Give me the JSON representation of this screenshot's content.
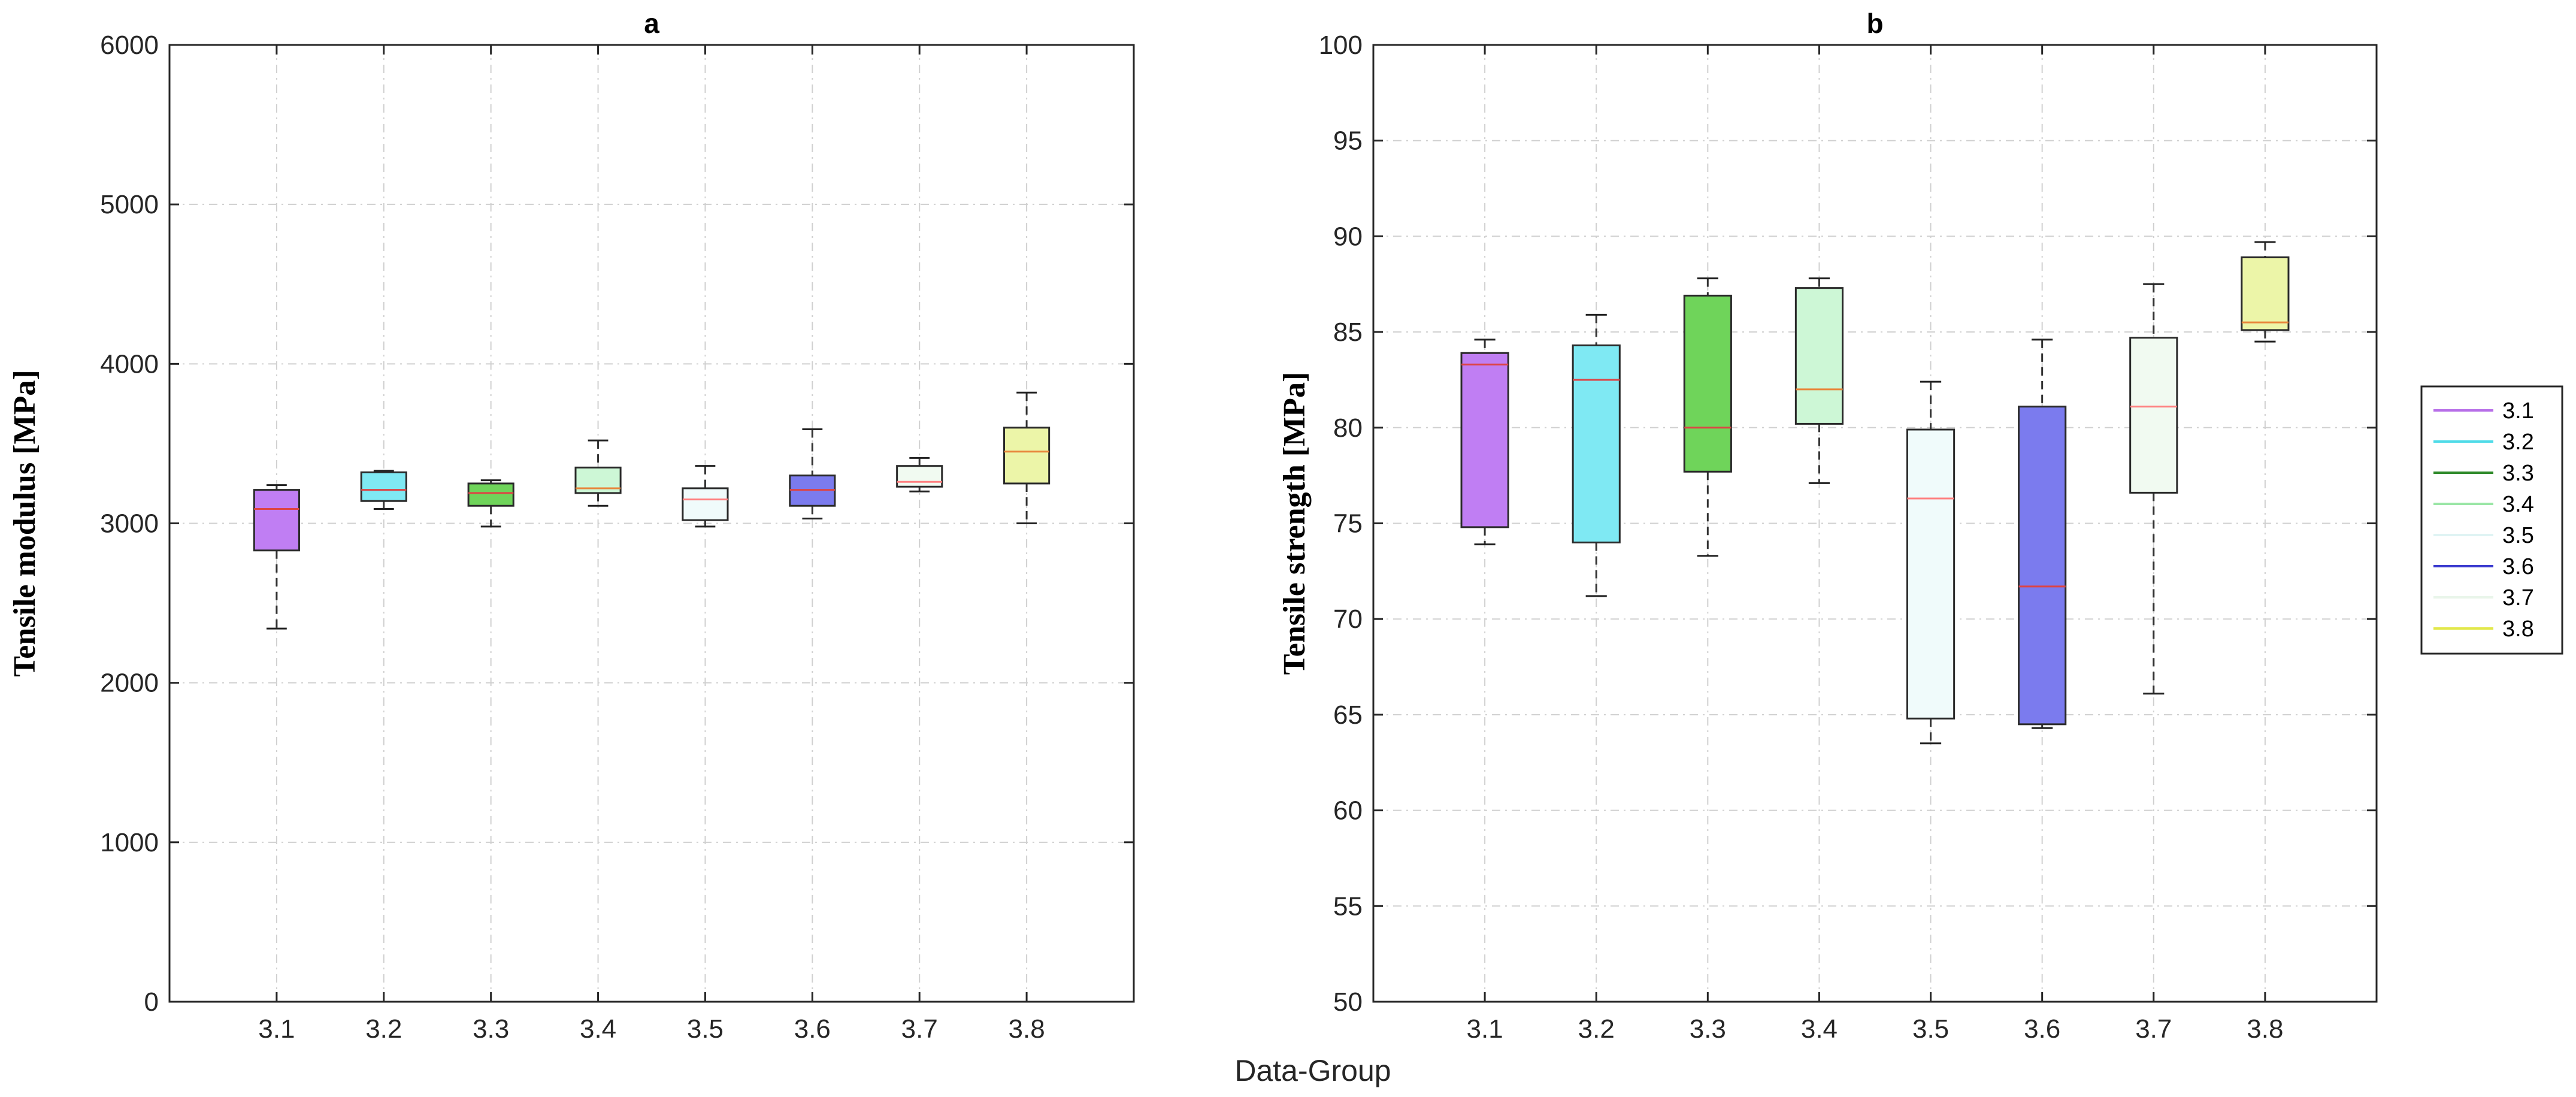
{
  "shared": {
    "xlabel": "Data-Group"
  },
  "legend": {
    "entries": [
      {
        "label": "3.1",
        "color": "#b76ee8"
      },
      {
        "label": "3.2",
        "color": "#4fdbe8"
      },
      {
        "label": "3.3",
        "color": "#2f8a2a"
      },
      {
        "label": "3.4",
        "color": "#9be6a6"
      },
      {
        "label": "3.5",
        "color": "#dff3f3"
      },
      {
        "label": "3.6",
        "color": "#3b3bcf"
      },
      {
        "label": "3.7",
        "color": "#e9f5ea"
      },
      {
        "label": "3.8",
        "color": "#e2e84a"
      }
    ]
  },
  "chart_data": [
    {
      "type": "box",
      "title": "a",
      "xlabel": "Data-Group",
      "ylabel": "Tensile modulus [MPa]",
      "ylim": [
        0,
        6000
      ],
      "yticks": [
        0,
        1000,
        2000,
        3000,
        4000,
        5000,
        6000
      ],
      "grid": true,
      "categories": [
        "3.1",
        "3.2",
        "3.3",
        "3.4",
        "3.5",
        "3.6",
        "3.7",
        "3.8"
      ],
      "boxes": [
        {
          "label": "3.1",
          "min": 2340,
          "q1": 2830,
          "median": 3090,
          "q3": 3210,
          "max": 3240,
          "fill": "#c07ef3",
          "edge": "#2a2a2a",
          "medianColor": "#d44"
        },
        {
          "label": "3.2",
          "min": 3090,
          "q1": 3140,
          "median": 3210,
          "q3": 3320,
          "max": 3330,
          "fill": "#7fe9f3",
          "edge": "#2a2a2a",
          "medianColor": "#d44"
        },
        {
          "label": "3.3",
          "min": 2980,
          "q1": 3110,
          "median": 3190,
          "q3": 3250,
          "max": 3270,
          "fill": "#6fd45a",
          "edge": "#2a2a2a",
          "medianColor": "#d44"
        },
        {
          "label": "3.4",
          "min": 3110,
          "q1": 3190,
          "median": 3220,
          "q3": 3350,
          "max": 3520,
          "fill": "#cdf7d6",
          "edge": "#2a2a2a",
          "medianColor": "#e8853a"
        },
        {
          "label": "3.5",
          "min": 2980,
          "q1": 3020,
          "median": 3150,
          "q3": 3220,
          "max": 3360,
          "fill": "#f0fbfb",
          "edge": "#2a2a2a",
          "medianColor": "#ff8080"
        },
        {
          "label": "3.6",
          "min": 3030,
          "q1": 3110,
          "median": 3210,
          "q3": 3300,
          "max": 3590,
          "fill": "#7b7bee",
          "edge": "#2a2a2a",
          "medianColor": "#d44"
        },
        {
          "label": "3.7",
          "min": 3200,
          "q1": 3230,
          "median": 3260,
          "q3": 3360,
          "max": 3410,
          "fill": "#f1faf1",
          "edge": "#2a2a2a",
          "medianColor": "#ff8080"
        },
        {
          "label": "3.8",
          "min": 3000,
          "q1": 3250,
          "median": 3450,
          "q3": 3600,
          "max": 3820,
          "fill": "#ecf5a8",
          "edge": "#2a2a2a",
          "medianColor": "#e8853a"
        }
      ]
    },
    {
      "type": "box",
      "title": "b",
      "xlabel": "Data-Group",
      "ylabel": "Tensile strength [MPa]",
      "ylim": [
        50,
        100
      ],
      "yticks": [
        50,
        55,
        60,
        65,
        70,
        75,
        80,
        85,
        90,
        95,
        100
      ],
      "grid": true,
      "categories": [
        "3.1",
        "3.2",
        "3.3",
        "3.4",
        "3.5",
        "3.6",
        "3.7",
        "3.8"
      ],
      "boxes": [
        {
          "label": "3.1",
          "min": 73.9,
          "q1": 74.8,
          "median": 83.3,
          "q3": 83.9,
          "max": 84.6,
          "fill": "#c07ef3",
          "edge": "#2a2a2a",
          "medianColor": "#d44"
        },
        {
          "label": "3.2",
          "min": 71.2,
          "q1": 74.0,
          "median": 82.5,
          "q3": 84.3,
          "max": 85.9,
          "fill": "#7fe9f3",
          "edge": "#2a2a2a",
          "medianColor": "#d44"
        },
        {
          "label": "3.3",
          "min": 73.3,
          "q1": 77.7,
          "median": 80.0,
          "q3": 86.9,
          "max": 87.8,
          "fill": "#6fd45a",
          "edge": "#2a2a2a",
          "medianColor": "#d44"
        },
        {
          "label": "3.4",
          "min": 77.1,
          "q1": 80.2,
          "median": 82.0,
          "q3": 87.3,
          "max": 87.8,
          "fill": "#cdf7d6",
          "edge": "#2a2a2a",
          "medianColor": "#e8853a"
        },
        {
          "label": "3.5",
          "min": 63.5,
          "q1": 64.8,
          "median": 76.3,
          "q3": 79.9,
          "max": 82.4,
          "fill": "#f0fbfb",
          "edge": "#2a2a2a",
          "medianColor": "#ff8080"
        },
        {
          "label": "3.6",
          "min": 64.3,
          "q1": 64.5,
          "median": 71.7,
          "q3": 81.1,
          "max": 84.6,
          "fill": "#7b7bee",
          "edge": "#2a2a2a",
          "medianColor": "#d44"
        },
        {
          "label": "3.7",
          "min": 66.1,
          "q1": 76.6,
          "median": 81.1,
          "q3": 84.7,
          "max": 87.5,
          "fill": "#f1faf1",
          "edge": "#2a2a2a",
          "medianColor": "#ff8080"
        },
        {
          "label": "3.8",
          "min": 84.5,
          "q1": 85.1,
          "median": 85.5,
          "q3": 88.9,
          "max": 89.7,
          "fill": "#ecf5a8",
          "edge": "#2a2a2a",
          "medianColor": "#e8853a"
        }
      ]
    }
  ]
}
